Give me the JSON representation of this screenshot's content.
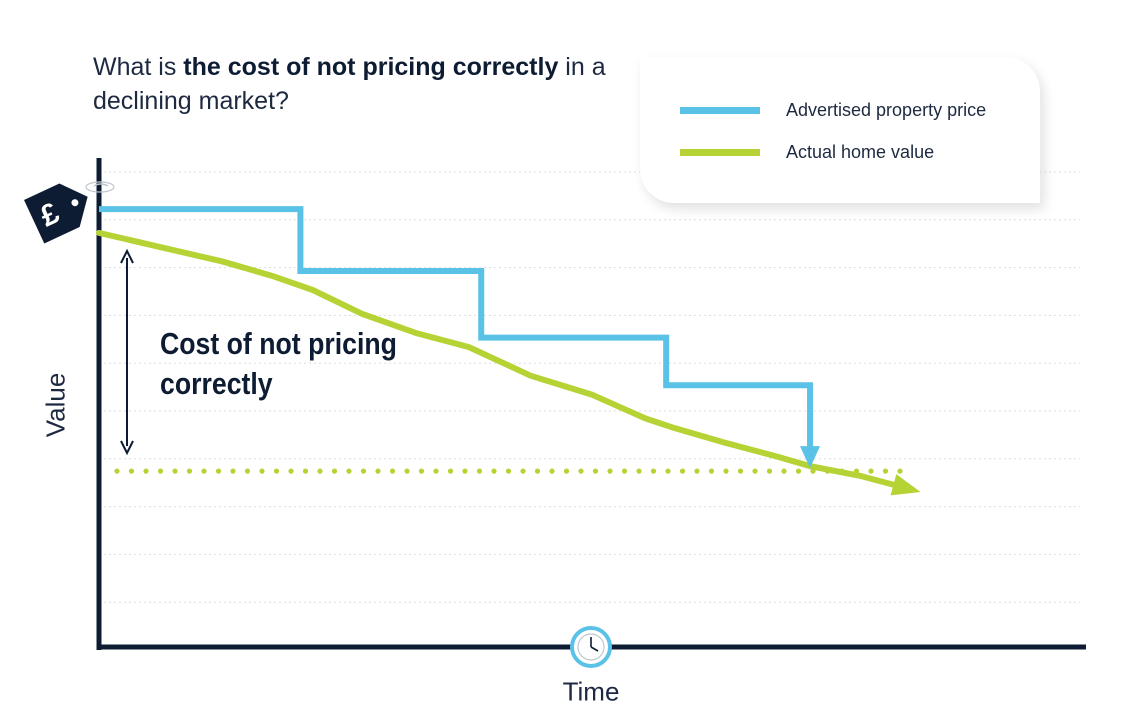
{
  "title": {
    "part1": "What is ",
    "bold1": "the cost of not pricing correctly",
    "part2": " in a declining market?"
  },
  "annotation": "Cost of not pricing correctly",
  "colors": {
    "advertised": "#5bc2e7",
    "actual": "#b5d334",
    "axis": "#0e1c33",
    "grid": "#d9dde2"
  },
  "chart_data": {
    "type": "line",
    "xlabel": "Time",
    "ylabel": "Value",
    "grid": true,
    "legend_position": "top-right",
    "series": [
      {
        "name": "Advertised property price",
        "step": true,
        "points": [
          [
            0,
            92
          ],
          [
            4.9,
            92
          ],
          [
            4.9,
            79
          ],
          [
            9.3,
            79
          ],
          [
            9.3,
            65
          ],
          [
            13.8,
            65
          ],
          [
            13.8,
            55
          ],
          [
            17.3,
            55
          ],
          [
            17.3,
            38
          ]
        ],
        "end": "arrow-down"
      },
      {
        "name": "Actual home value",
        "points": [
          [
            0,
            87
          ],
          [
            1.5,
            84
          ],
          [
            3,
            81
          ],
          [
            4.2,
            78
          ],
          [
            5.2,
            75
          ],
          [
            6.4,
            70
          ],
          [
            7.7,
            66
          ],
          [
            9,
            63
          ],
          [
            10.5,
            57
          ],
          [
            12,
            53
          ],
          [
            13.3,
            48
          ],
          [
            14,
            46
          ],
          [
            15.2,
            43
          ],
          [
            16.5,
            40
          ],
          [
            17.3,
            38
          ],
          [
            18.5,
            36
          ],
          [
            19.8,
            33
          ]
        ],
        "end": "arrow-right"
      }
    ],
    "reference_line": {
      "y": 38,
      "style": "dotted",
      "color": "#b5d334"
    },
    "icons": [
      "pound-price-tag-icon",
      "clock-icon"
    ]
  }
}
